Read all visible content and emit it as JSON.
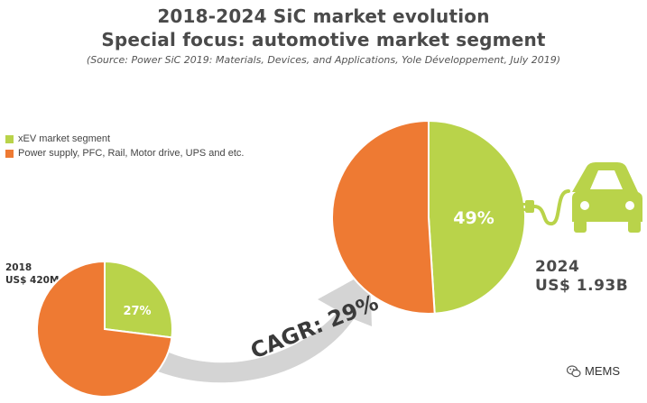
{
  "header": {
    "title": "2018-2024 SiC market evolution",
    "subtitle": "Special focus: automotive market segment",
    "source": "(Source: Power SiC 2019: Materials, Devices, and Applications, Yole Développement, July 2019)"
  },
  "colors": {
    "xev": "#b9d34a",
    "power": "#ee7a33",
    "arrow": "#d4d4d4",
    "car": "#b9d34a"
  },
  "icons": {
    "car": "car-icon",
    "plug": "plug-icon",
    "watermark": "wechat-icon"
  },
  "chart_data": [
    {
      "type": "pie",
      "year_label": "2018",
      "total_label": "US$ 420M",
      "series": [
        {
          "name": "xEV market segment",
          "value": 27,
          "label": "27%"
        },
        {
          "name": "Power supply, PFC, Rail, Motor drive, UPS and etc.",
          "value": 73
        }
      ]
    },
    {
      "type": "pie",
      "year_label": "2024",
      "total_label": "US$ 1.93B",
      "series": [
        {
          "name": "xEV market segment",
          "value": 49,
          "label": "49%"
        },
        {
          "name": "Power supply, PFC, Rail, Motor drive, UPS and etc.",
          "value": 51
        }
      ]
    }
  ],
  "legend": [
    {
      "label": "xEV market segment",
      "color": "#b9d34a"
    },
    {
      "label": "Power supply, PFC, Rail, Motor drive, UPS and etc.",
      "color": "#ee7a33"
    }
  ],
  "growth": {
    "label": "CAGR: 29%"
  },
  "watermark": {
    "text": "MEMS"
  }
}
